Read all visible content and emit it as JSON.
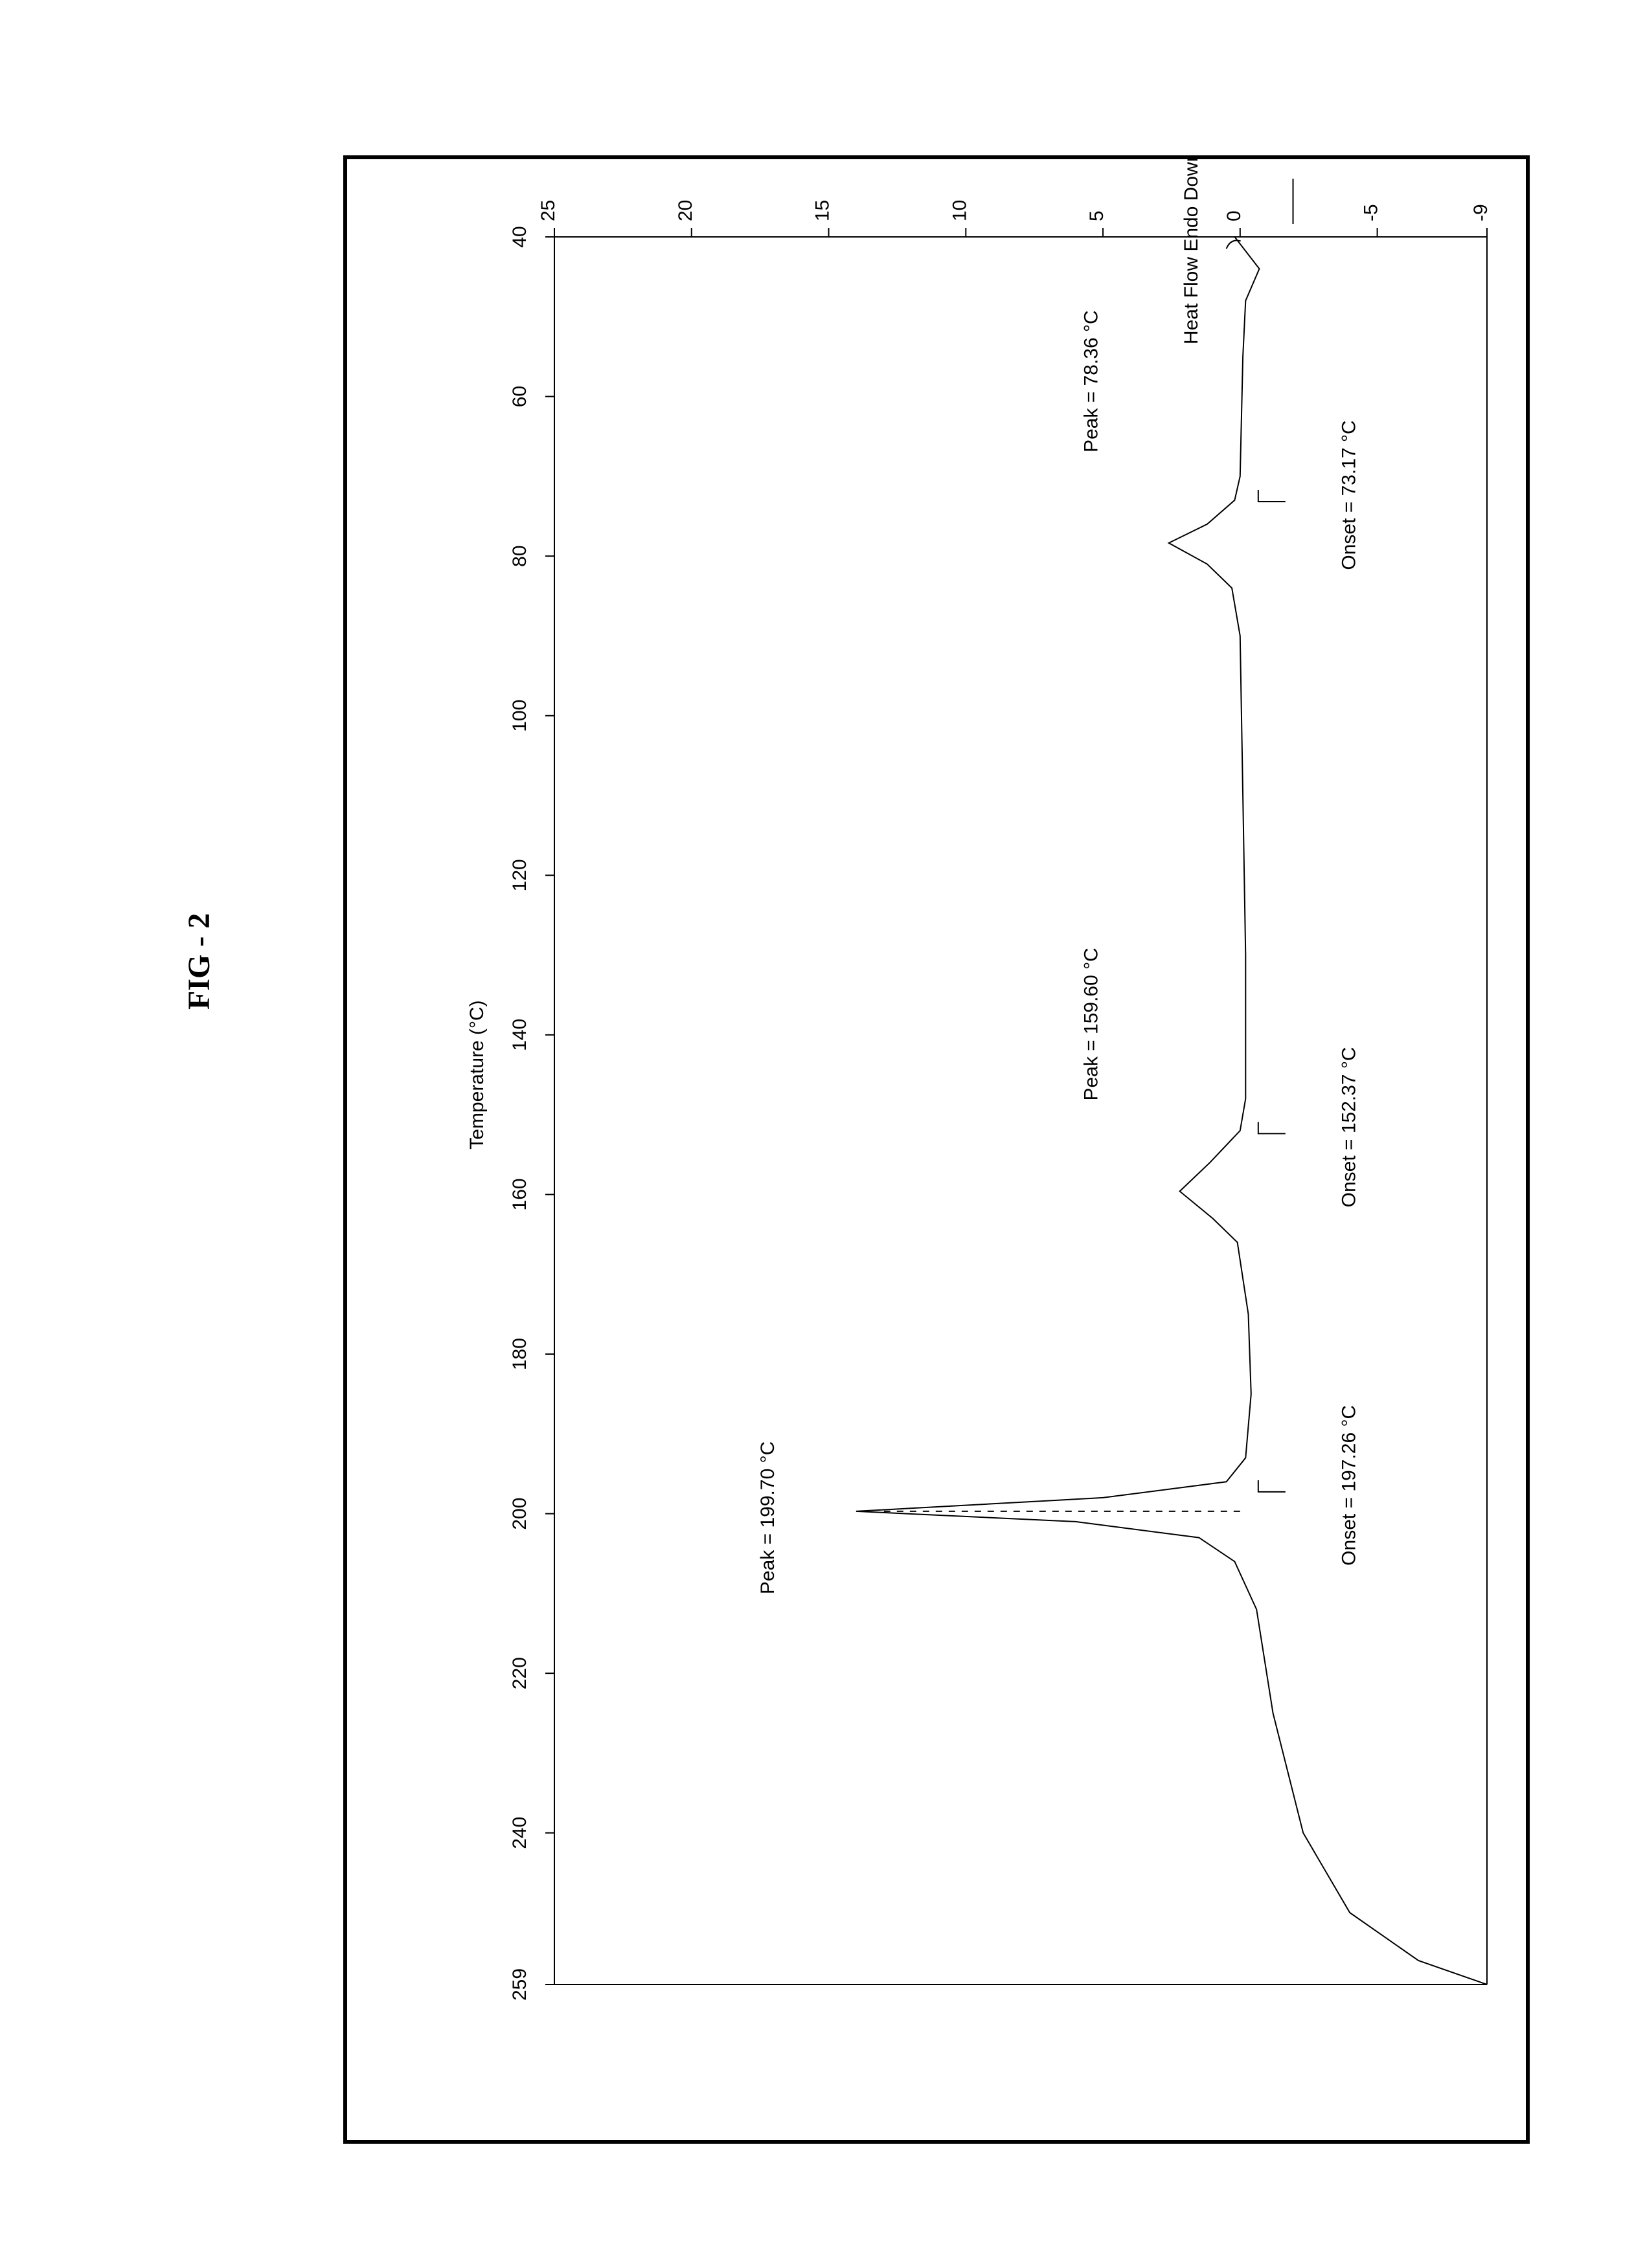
{
  "figure_label": "FIG - 2",
  "chart": {
    "type": "line",
    "background_color": "#ffffff",
    "border_color": "#000000",
    "axis_color": "#000000",
    "curve_color": "#000000",
    "line_width": 2,
    "x_axis": {
      "label": "Heat Flow Endo Down (mW)",
      "label_fontsize": 30,
      "orientation": "vertical-right-to-left",
      "ticks": [
        -9,
        -5,
        0,
        5,
        10,
        15,
        20,
        25
      ],
      "tick_fontsize": 30,
      "range_min": -9,
      "range_max": 25
    },
    "y_axis": {
      "label": "Temperature (°C)",
      "label_fontsize": 30,
      "orientation": "horizontal",
      "ticks": [
        40,
        60,
        80,
        100,
        120,
        140,
        160,
        180,
        200,
        220,
        240,
        259
      ],
      "tick_fontsize": 30,
      "range_min": 40,
      "range_max": 259
    },
    "annotations": [
      {
        "id": "onset1",
        "text": "Onset = 73.17 °C",
        "temp": 73.17,
        "side": "above"
      },
      {
        "id": "peak1",
        "text": "Peak = 78.36 °C",
        "temp": 78.36,
        "side": "below"
      },
      {
        "id": "onset2",
        "text": "Onset = 152.37 °C",
        "temp": 152.37,
        "side": "above"
      },
      {
        "id": "peak2",
        "text": "Peak = 159.60 °C",
        "temp": 159.6,
        "side": "below"
      },
      {
        "id": "onset3",
        "text": "Onset = 197.26 °C",
        "temp": 197.26,
        "side": "above"
      },
      {
        "id": "peak3",
        "text": "Peak = 199.70 °C",
        "temp": 199.7,
        "side": "below-far"
      }
    ],
    "curve_points": [
      {
        "t": 40,
        "q": 0.2
      },
      {
        "t": 44,
        "q": -0.7
      },
      {
        "t": 48,
        "q": -0.2
      },
      {
        "t": 55,
        "q": -0.1
      },
      {
        "t": 70,
        "q": 0.0
      },
      {
        "t": 73,
        "q": 0.2
      },
      {
        "t": 76,
        "q": 1.2
      },
      {
        "t": 78.36,
        "q": 2.6
      },
      {
        "t": 81,
        "q": 1.2
      },
      {
        "t": 84,
        "q": 0.3
      },
      {
        "t": 90,
        "q": 0.0
      },
      {
        "t": 110,
        "q": -0.1
      },
      {
        "t": 130,
        "q": -0.2
      },
      {
        "t": 148,
        "q": -0.2
      },
      {
        "t": 152,
        "q": 0.0
      },
      {
        "t": 156,
        "q": 1.1
      },
      {
        "t": 159.6,
        "q": 2.2
      },
      {
        "t": 163,
        "q": 1.0
      },
      {
        "t": 166,
        "q": 0.1
      },
      {
        "t": 175,
        "q": -0.3
      },
      {
        "t": 185,
        "q": -0.4
      },
      {
        "t": 193,
        "q": -0.2
      },
      {
        "t": 196,
        "q": 0.5
      },
      {
        "t": 198,
        "q": 5.0
      },
      {
        "t": 199.7,
        "q": 14.0
      },
      {
        "t": 201,
        "q": 6.0
      },
      {
        "t": 203,
        "q": 1.5
      },
      {
        "t": 206,
        "q": 0.2
      },
      {
        "t": 212,
        "q": -0.6
      },
      {
        "t": 225,
        "q": -1.2
      },
      {
        "t": 240,
        "q": -2.3
      },
      {
        "t": 250,
        "q": -4.0
      },
      {
        "t": 256,
        "q": -6.5
      },
      {
        "t": 259,
        "q": -9.0
      }
    ]
  }
}
